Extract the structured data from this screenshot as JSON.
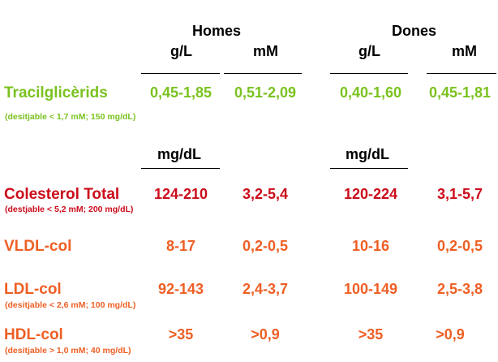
{
  "colors": {
    "green": "#7ac21f",
    "red": "#cc0c1b",
    "orange": "#ee5f24",
    "black": "#000000"
  },
  "headers": {
    "men": "Homes",
    "women": "Dones"
  },
  "units_top": {
    "men_gl": "g/L",
    "men_mm": "mM",
    "women_gl": "g/L",
    "women_mm": "mM"
  },
  "units_mid": {
    "men_mgdl": "mg/dL",
    "women_mgdl": "mg/dL"
  },
  "rows": [
    {
      "name": "Tracilglicèrids",
      "note": "(desitjable < 1,7 mM; 150 mg/dL)",
      "men_a": "0,45-1,85",
      "men_b": "0,51-2,09",
      "women_a": "0,40-1,60",
      "women_b": "0,45-1,81"
    },
    {
      "name": "Colesterol Total",
      "note": "(destjable < 5,2  mM; 200 mg/dL)",
      "men_a": "124-210",
      "men_b": "3,2-5,4",
      "women_a": "120-224",
      "women_b": "3,1-5,7"
    },
    {
      "name": "VLDL-col",
      "note": "",
      "men_a": "8-17",
      "men_b": "0,2-0,5",
      "women_a": "10-16",
      "women_b": "0,2-0,5"
    },
    {
      "name": "LDL-col",
      "note": "(desitjable < 2,6 mM; 100 mg/dL)",
      "men_a": "92-143",
      "men_b": "2,4-3,7",
      "women_a": "100-149",
      "women_b": "2,5-3,8"
    },
    {
      "name": "HDL-col",
      "note": "(desitjable > 1,0 mM; 40 mg/dL)",
      "men_a": ">35",
      "men_b": ">0,9",
      "women_a": ">35",
      "women_b": ">0,9"
    }
  ]
}
